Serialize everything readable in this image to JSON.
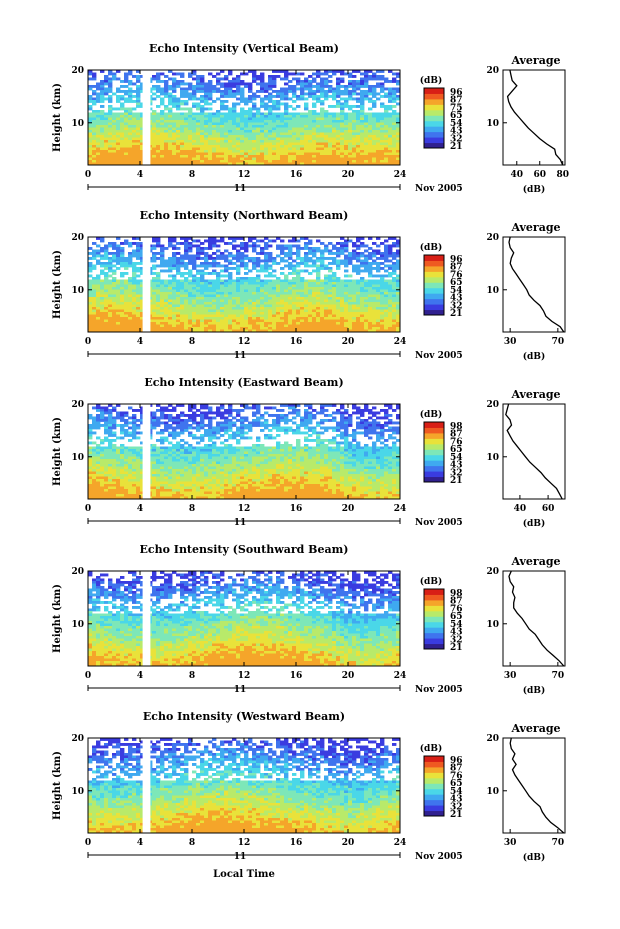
{
  "colors": {
    "colormap": [
      "#30208f",
      "#3a3ce0",
      "#3f74ee",
      "#3fa9f0",
      "#4ad7e8",
      "#7de7b8",
      "#b8ea6a",
      "#e9e23a",
      "#f5a52a",
      "#ef5a21",
      "#d81f16"
    ],
    "contour_palette": [
      "#3a3ce0",
      "#3f74ee",
      "#3fa9f0",
      "#4ad7e8",
      "#7de7b8",
      "#b8ea6a",
      "#e9e23a",
      "#f5a52a"
    ],
    "axis": "#000000"
  },
  "figure": {
    "x_axis_title": "Local Time",
    "date_suffix": "Nov 2005",
    "day_label": "11"
  },
  "chart_data": [
    {
      "type": "heatmap",
      "title": "Echo Intensity (Vertical Beam)",
      "ylabel": "Height (km)",
      "xlabel": "Local Time",
      "xlim": [
        0,
        24
      ],
      "ylim": [
        2,
        20
      ],
      "xticks": [
        0,
        4,
        8,
        12,
        16,
        20,
        24
      ],
      "yticks": [
        10,
        20
      ],
      "data_gap_hours": [
        4.2,
        4.8
      ],
      "colorbar": {
        "label": "(dB)",
        "ticks": [
          96,
          87,
          75,
          65,
          54,
          43,
          32,
          21
        ]
      },
      "profile": {
        "title": "Average",
        "xlabel": "(dB)",
        "xticks": [
          40,
          60,
          80
        ],
        "xlim": [
          28,
          82
        ],
        "heights_km": [
          2,
          3,
          4,
          5,
          6,
          7,
          8,
          9,
          10,
          11,
          12,
          13,
          14,
          15,
          16,
          17,
          18,
          19,
          20
        ],
        "values_db": [
          80,
          78,
          74,
          73,
          66,
          60,
          55,
          50,
          46,
          42,
          38,
          35,
          33,
          32,
          36,
          40,
          36,
          35,
          34
        ]
      }
    },
    {
      "type": "heatmap",
      "title": "Echo Intensity (Northward Beam)",
      "ylabel": "Height (km)",
      "xlabel": "Local Time",
      "xlim": [
        0,
        24
      ],
      "ylim": [
        2,
        20
      ],
      "xticks": [
        0,
        4,
        8,
        12,
        16,
        20,
        24
      ],
      "yticks": [
        10,
        20
      ],
      "data_gap_hours": [
        4.2,
        4.8
      ],
      "colorbar": {
        "label": "(dB)",
        "ticks": [
          96,
          87,
          76,
          65,
          54,
          43,
          32,
          21
        ]
      },
      "profile": {
        "title": "Average",
        "xlabel": "(dB)",
        "xticks": [
          30,
          70
        ],
        "xlim": [
          24,
          76
        ],
        "heights_km": [
          2,
          3,
          4,
          5,
          6,
          7,
          8,
          9,
          10,
          11,
          12,
          13,
          14,
          15,
          16,
          17,
          18,
          19,
          20
        ],
        "values_db": [
          75,
          72,
          65,
          60,
          58,
          55,
          50,
          46,
          44,
          41,
          38,
          35,
          32,
          30,
          31,
          33,
          30,
          29,
          30
        ]
      }
    },
    {
      "type": "heatmap",
      "title": "Echo Intensity (Eastward Beam)",
      "ylabel": "Height (km)",
      "xlabel": "Local Time",
      "xlim": [
        0,
        24
      ],
      "ylim": [
        2,
        20
      ],
      "xticks": [
        0,
        4,
        8,
        12,
        16,
        20,
        24
      ],
      "yticks": [
        10,
        20
      ],
      "data_gap_hours": [
        4.2,
        4.8
      ],
      "colorbar": {
        "label": "(dB)",
        "ticks": [
          98,
          87,
          76,
          65,
          54,
          43,
          32,
          21
        ]
      },
      "profile": {
        "title": "Average",
        "xlabel": "(dB)",
        "xticks": [
          40,
          60
        ],
        "xlim": [
          28,
          72
        ],
        "heights_km": [
          2,
          3,
          4,
          5,
          6,
          7,
          8,
          9,
          10,
          11,
          12,
          13,
          14,
          15,
          16,
          17,
          18,
          19,
          20
        ],
        "values_db": [
          70,
          68,
          66,
          62,
          58,
          55,
          51,
          47,
          44,
          41,
          38,
          35,
          33,
          31,
          34,
          33,
          30,
          31,
          32
        ]
      }
    },
    {
      "type": "heatmap",
      "title": "Echo Intensity (Southward Beam)",
      "ylabel": "Height (km)",
      "xlabel": "Local Time",
      "xlim": [
        0,
        24
      ],
      "ylim": [
        2,
        20
      ],
      "xticks": [
        0,
        4,
        8,
        12,
        16,
        20,
        24
      ],
      "yticks": [
        10,
        20
      ],
      "data_gap_hours": [
        4.2,
        4.8
      ],
      "colorbar": {
        "label": "(dB)",
        "ticks": [
          98,
          87,
          76,
          65,
          54,
          43,
          32,
          21
        ]
      },
      "profile": {
        "title": "Average",
        "xlabel": "(dB)",
        "xticks": [
          30,
          70
        ],
        "xlim": [
          24,
          76
        ],
        "heights_km": [
          2,
          3,
          4,
          5,
          6,
          7,
          8,
          9,
          10,
          11,
          12,
          13,
          14,
          15,
          16,
          17,
          18,
          19,
          20
        ],
        "values_db": [
          75,
          71,
          66,
          61,
          57,
          54,
          51,
          46,
          43,
          40,
          36,
          33,
          33,
          34,
          32,
          33,
          30,
          29,
          31
        ]
      }
    },
    {
      "type": "heatmap",
      "title": "Echo Intensity (Westward Beam)",
      "ylabel": "Height (km)",
      "xlabel": "Local Time",
      "xlim": [
        0,
        24
      ],
      "ylim": [
        2,
        20
      ],
      "xticks": [
        0,
        4,
        8,
        12,
        16,
        20,
        24
      ],
      "yticks": [
        10,
        20
      ],
      "data_gap_hours": [
        4.2,
        4.8
      ],
      "colorbar": {
        "label": "(dB)",
        "ticks": [
          96,
          87,
          76,
          65,
          54,
          43,
          32,
          21
        ]
      },
      "profile": {
        "title": "Average",
        "xlabel": "(dB)",
        "xticks": [
          30,
          70
        ],
        "xlim": [
          24,
          76
        ],
        "heights_km": [
          2,
          3,
          4,
          5,
          6,
          7,
          8,
          9,
          10,
          11,
          12,
          13,
          14,
          15,
          16,
          17,
          18,
          19,
          20
        ],
        "values_db": [
          75,
          70,
          64,
          60,
          57,
          55,
          50,
          46,
          43,
          40,
          37,
          34,
          32,
          35,
          32,
          34,
          31,
          30,
          31
        ]
      }
    }
  ]
}
